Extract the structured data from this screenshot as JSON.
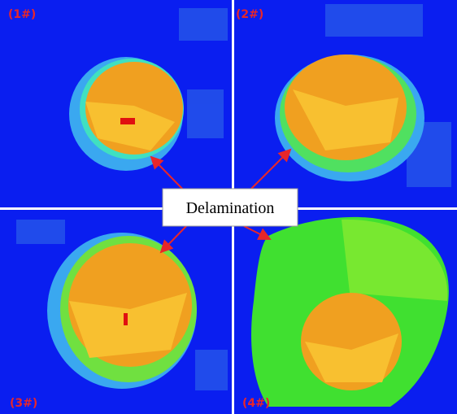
{
  "panels": [
    {
      "label": "(1#)"
    },
    {
      "label": "(2#)"
    },
    {
      "label": "(3#)"
    },
    {
      "label": "(4#)"
    }
  ],
  "annotation": "Delamination"
}
